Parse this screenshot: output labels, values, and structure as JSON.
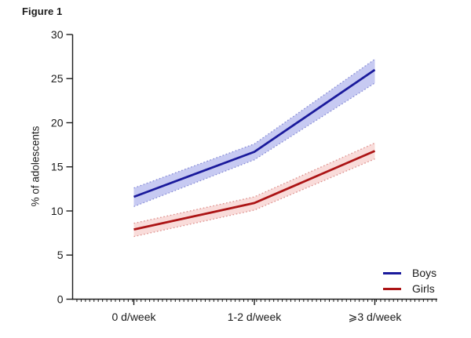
{
  "figure_title": "Figure 1",
  "chart_data": {
    "type": "line",
    "title": "Figure 1",
    "categories": [
      "0 d/week",
      "1-2 d/week",
      "⩾3 d/week"
    ],
    "xlabel": "",
    "ylabel": "% of adolescents",
    "ylim": [
      0,
      30
    ],
    "yticks": [
      0,
      5,
      10,
      15,
      20,
      25,
      30
    ],
    "grid": false,
    "legend_position": "inside bottom-right",
    "band_style": "shaded confidence band with dotted edges",
    "axis_color": "#1c1c1c",
    "series": [
      {
        "name": "Boys",
        "color": "#1a1a9c",
        "band_fill": "#c7caf2",
        "band_edge": "#868bd6",
        "values": [
          11.6,
          16.7,
          26.0
        ],
        "ci_lower": [
          10.5,
          15.8,
          24.5
        ],
        "ci_upper": [
          12.6,
          17.6,
          27.2
        ]
      },
      {
        "name": "Girls",
        "color": "#ac1415",
        "band_fill": "#f9dcda",
        "band_edge": "#dd8f8c",
        "values": [
          7.9,
          10.9,
          16.8
        ],
        "ci_lower": [
          7.1,
          10.1,
          15.9
        ],
        "ci_upper": [
          8.6,
          11.6,
          17.7
        ]
      }
    ]
  }
}
